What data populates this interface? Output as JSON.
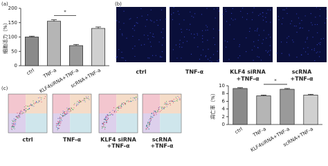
{
  "panels": {
    "a": "(a)",
    "b": "(b)",
    "c": "(c)"
  },
  "images_b": {
    "labels": [
      [
        "ctrl"
      ],
      [
        "TNF-α"
      ],
      [
        "KLF4 siRNA",
        "+TNF-α"
      ],
      [
        "scRNA",
        "+TNF-α"
      ]
    ]
  },
  "flow_c": {
    "labels": [
      [
        "ctrl"
      ],
      [
        "TNF-α"
      ],
      [
        "KLF4 siRNA",
        "+TNF-α"
      ],
      [
        "scRNA",
        "+TNF-α"
      ]
    ]
  },
  "chart_data": [
    {
      "type": "bar",
      "y_label": "细胞活力（%）",
      "categories": [
        "ctrl",
        "TNF-a",
        "KLF4siRNA+TNF-a",
        "scRNA+TNF-a"
      ],
      "values": [
        100,
        155,
        70,
        130
      ],
      "errors": [
        3,
        5,
        4,
        5
      ],
      "colors": [
        "#8a8a8a",
        "#b5b5b5",
        "#9a9a9a",
        "#d0d0d0"
      ],
      "ylim": [
        0,
        200
      ],
      "yticks": [
        0,
        50,
        100,
        150,
        200
      ],
      "significance": {
        "label": "*",
        "between": [
          "TNF-a",
          "KLF4siRNA+TNF-a"
        ]
      }
    },
    {
      "type": "bar",
      "y_label": "凋亡率（%）",
      "categories": [
        "ctrl",
        "TNF-a",
        "KLF4siRNA+TNF-a",
        "scRNA+TNF-a"
      ],
      "values": [
        9.3,
        7.4,
        9.1,
        7.6
      ],
      "errors": [
        0.2,
        0.2,
        0.2,
        0.2
      ],
      "colors": [
        "#8a8a8a",
        "#b5b5b5",
        "#9a9a9a",
        "#d0d0d0"
      ],
      "ylim": [
        0,
        10
      ],
      "yticks": [
        0,
        2,
        4,
        6,
        8,
        10
      ],
      "significance": {
        "label": "*",
        "between": [
          "TNF-a",
          "KLF4siRNA+TNF-a"
        ]
      }
    }
  ]
}
